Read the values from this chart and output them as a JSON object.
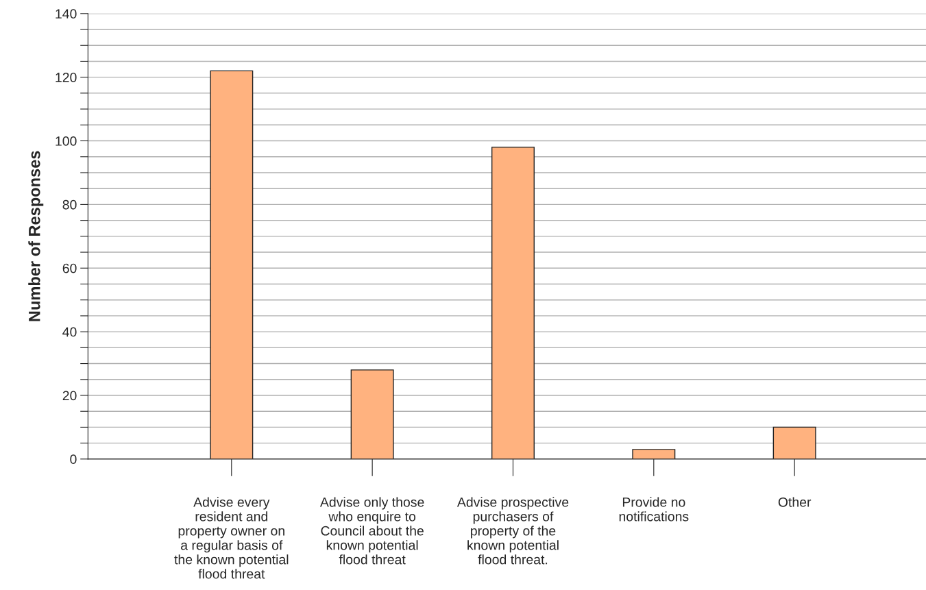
{
  "chart_data": {
    "type": "bar",
    "ylabel": "Number of Responses",
    "categories": [
      "Advise every\nresident and\nproperty owner on\na regular basis of\nthe known potential\nflood threat",
      "Advise only those\nwho enquire to\nCouncil about the\nknown potential\nflood threat",
      "Advise prospective\npurchasers of\nproperty of the\nknown potential\nflood threat.",
      "Provide no\nnotifications",
      "Other"
    ],
    "values": [
      122,
      28,
      98,
      3,
      10
    ],
    "color": "#ffb27f",
    "ylim": [
      0,
      140
    ],
    "yticks": [
      0,
      {
        "value": 5,
        "label": null
      },
      {
        "value": 10,
        "label": null
      },
      {
        "value": 15,
        "label": null
      },
      20,
      {
        "value": 25,
        "label": null
      },
      {
        "value": 30,
        "label": null
      },
      {
        "value": 35,
        "label": null
      },
      40,
      {
        "value": 45,
        "label": null
      },
      {
        "value": 50,
        "label": null
      },
      {
        "value": 55,
        "label": null
      },
      60,
      {
        "value": 65,
        "label": null
      },
      {
        "value": 70,
        "label": null
      },
      {
        "value": 75,
        "label": null
      },
      80,
      {
        "value": 85,
        "label": null
      },
      {
        "value": 90,
        "label": null
      },
      {
        "value": 95,
        "label": null
      },
      100,
      {
        "value": 105,
        "label": null
      },
      {
        "value": 110,
        "label": null
      },
      {
        "value": 115,
        "label": null
      },
      120,
      {
        "value": 125,
        "label": null
      },
      {
        "value": 130,
        "label": null
      },
      {
        "value": 135,
        "label": null
      },
      140
    ],
    "grid": "y"
  }
}
